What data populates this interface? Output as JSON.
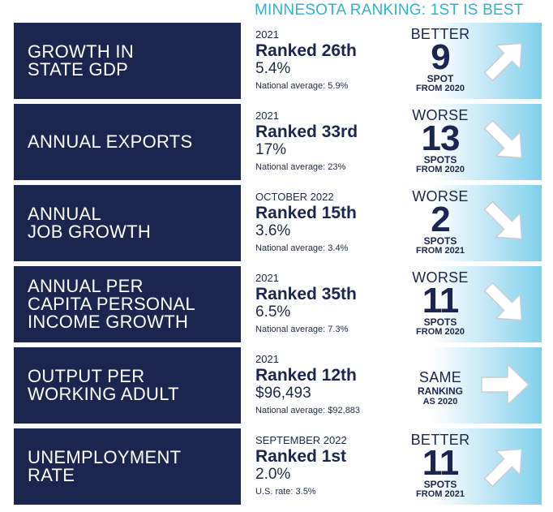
{
  "header": {
    "title": "MINNESOTA RANKING: 1ST IS BEST"
  },
  "rows": [
    {
      "label": "GROWTH IN\nSTATE GDP",
      "year": "2021",
      "rank": "Ranked 26th",
      "value": "5.4%",
      "national": "National average: 5.9%",
      "change": {
        "direction": "BETTER",
        "number": "9",
        "unit": "SPOT",
        "from": "FROM 2020",
        "arrow": "arrow-up-right-icon"
      }
    },
    {
      "label": "ANNUAL EXPORTS",
      "year": "2021",
      "rank": "Ranked 33rd",
      "value": "17%",
      "national": "National average: 23%",
      "change": {
        "direction": "WORSE",
        "number": "13",
        "unit": "SPOTS",
        "from": "FROM 2020",
        "arrow": "arrow-down-right-icon"
      }
    },
    {
      "label": "ANNUAL\nJOB GROWTH",
      "year": "OCTOBER 2022",
      "rank": "Ranked 15th",
      "value": "3.6%",
      "national": "National average: 3.4%",
      "change": {
        "direction": "WORSE",
        "number": "2",
        "unit": "SPOTS",
        "from": "FROM 2021",
        "arrow": "arrow-down-right-icon"
      }
    },
    {
      "label": "ANNUAL PER\nCAPITA PERSONAL\nINCOME GROWTH",
      "year": "2021",
      "rank": "Ranked 35th",
      "value": "6.5%",
      "national": "National average: 7.3%",
      "change": {
        "direction": "WORSE",
        "number": "11",
        "unit": "SPOTS",
        "from": "FROM 2020",
        "arrow": "arrow-down-right-icon"
      }
    },
    {
      "label": "OUTPUT PER\nWORKING ADULT",
      "year": "2021",
      "rank": "Ranked 12th",
      "value": "$96,493",
      "national": "National average: $92,883",
      "change": {
        "direction": "SAME",
        "number": "",
        "unit": "RANKING",
        "from": "AS 2020",
        "arrow": "arrow-right-icon"
      }
    },
    {
      "label": "UNEMPLOYMENT\nRATE",
      "year": "SEPTEMBER 2022",
      "rank": "Ranked 1st",
      "value": "2.0%",
      "national": "U.S. rate: 3.5%",
      "change": {
        "direction": "BETTER",
        "number": "11",
        "unit": "SPOTS",
        "from": "FROM 2021",
        "arrow": "arrow-up-right-icon"
      }
    }
  ],
  "colors": {
    "navy": "#1b2650",
    "accent": "#2bb3d6",
    "light_blue": "#7fd0ec"
  }
}
